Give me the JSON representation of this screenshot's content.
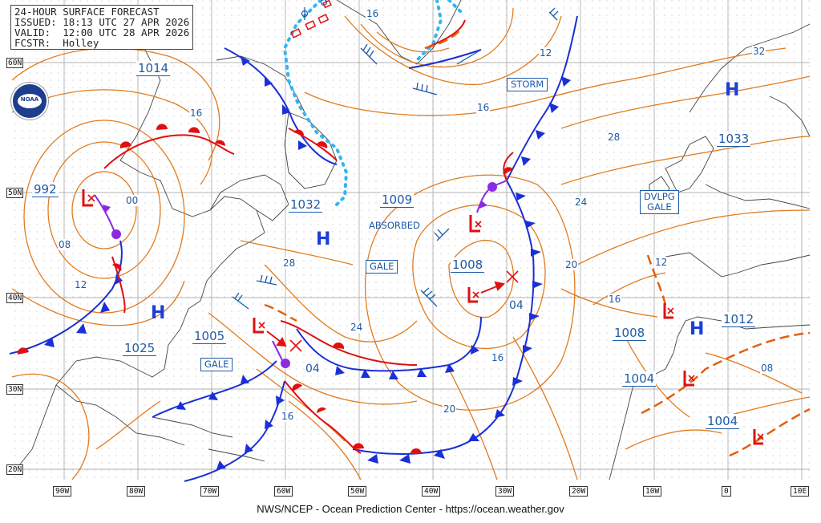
{
  "header": {
    "title": "24-HOUR SURFACE FORECAST",
    "issued": "ISSUED: 18:13 UTC 27 APR 2026",
    "valid": "VALID:  12:00 UTC 28 APR 2026",
    "forecaster": "FCSTR:  Holley"
  },
  "credit": "NWS/NCEP - Ocean Prediction Center - https://ocean.weather.gov",
  "logo_text": "NOAA",
  "lat_labels": [
    "60N",
    "50N",
    "40N",
    "30N",
    "20N"
  ],
  "lon_labels": [
    "90W",
    "80W",
    "70W",
    "60W",
    "50W",
    "40W",
    "30W",
    "20W",
    "10W",
    "0",
    "10E"
  ],
  "pressure_centers": [
    {
      "label": "992"
    },
    {
      "label": "1014"
    },
    {
      "label": "1032"
    },
    {
      "label": "1009"
    },
    {
      "label": "1008"
    },
    {
      "label": "1033"
    },
    {
      "label": "1025"
    },
    {
      "label": "1005"
    },
    {
      "label": "1008"
    },
    {
      "label": "1012"
    },
    {
      "label": "1004"
    },
    {
      "label": "1004"
    }
  ],
  "high_symbol": "H",
  "boxed_labels": {
    "storm": "STORM",
    "absorbed": "ABSORBED",
    "gale_mid": "GALE",
    "gale_west": "GALE",
    "dvlpg_gale_line1": "DVLPG",
    "dvlpg_gale_line2": "GALE"
  },
  "isobar_labels": [
    "16",
    "12",
    "16",
    "32",
    "28",
    "24",
    "20",
    "16",
    "12",
    "08",
    "00",
    "08",
    "12",
    "16",
    "24",
    "28",
    "04",
    "04",
    "16",
    "20",
    "16"
  ],
  "colors": {
    "isobar": "#e07b1e",
    "cold_front": "#1a2fd6",
    "warm_front": "#e01010",
    "occluded": "#8a2be2",
    "ice_edge": "#33b5f0",
    "low_symbol": "#e01010",
    "label": "#1f5aa6",
    "grid": "#9a9a9a"
  }
}
